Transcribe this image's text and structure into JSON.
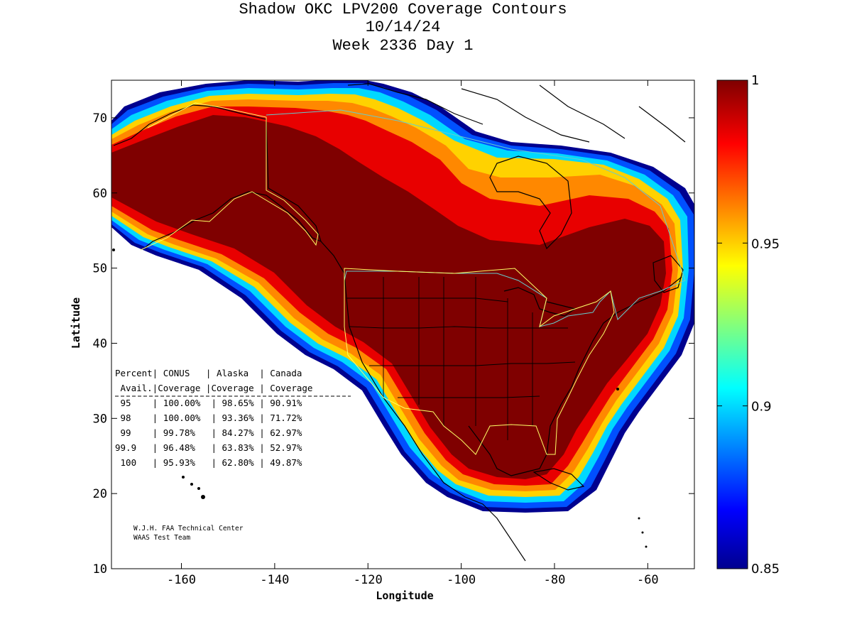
{
  "title": {
    "line1": "Shadow OKC LPV200 Coverage Contours",
    "line2": "10/14/24",
    "line3": "Week 2336 Day 1"
  },
  "axes": {
    "xlabel": "Longitude",
    "ylabel": "Latitude",
    "xlim": [
      -175,
      -50
    ],
    "ylim": [
      10,
      75
    ],
    "xticks": [
      -160,
      -140,
      -120,
      -100,
      -80,
      -60
    ],
    "yticks": [
      10,
      20,
      30,
      40,
      50,
      60,
      70
    ],
    "xtick_labels": [
      "-160",
      "-140",
      "-120",
      "-100",
      "-80",
      "-60"
    ],
    "ytick_labels": [
      "10",
      "20",
      "30",
      "40",
      "50",
      "60",
      "70"
    ]
  },
  "colorbar": {
    "range": [
      0.85,
      1.0
    ],
    "ticks": [
      0.85,
      0.9,
      0.95,
      1.0
    ],
    "tick_labels": [
      "0.85",
      "0.9",
      "0.95",
      "1"
    ],
    "colormap": "jet"
  },
  "coverage_table": {
    "header1": "Percent| CONUS   | Alaska  | Canada",
    "header2": " Avail.|Coverage |Coverage | Coverage",
    "separator": "------------------------------------------",
    "rows": [
      " 95    | 100.00%  | 98.65% | 90.91%",
      " 98    | 100.00%  | 93.36% | 71.72%",
      " 99    | 99.78%   | 84.27% | 62.97%",
      "99.9   | 96.48%   | 63.83% | 52.97%",
      " 100   | 95.93%   | 62.80% | 49.87%"
    ],
    "data": [
      {
        "percent_avail": 95,
        "conus": "100.00%",
        "alaska": "98.65%",
        "canada": "90.91%"
      },
      {
        "percent_avail": 98,
        "conus": "100.00%",
        "alaska": "93.36%",
        "canada": "71.72%"
      },
      {
        "percent_avail": 99,
        "conus": "99.78%",
        "alaska": "84.27%",
        "canada": "62.97%"
      },
      {
        "percent_avail": 99.9,
        "conus": "96.48%",
        "alaska": "63.83%",
        "canada": "52.97%"
      },
      {
        "percent_avail": 100,
        "conus": "95.93%",
        "alaska": "62.80%",
        "canada": "49.87%"
      }
    ]
  },
  "credit": {
    "line1": "W.J.H. FAA Technical Center",
    "line2": "WAAS Test Team"
  },
  "colors": {
    "dark_red": "#7f0000",
    "red": "#e00000",
    "orange": "#ff8c00",
    "yellow": "#ffd700",
    "cyan": "#00d0ff",
    "blue": "#0040ff",
    "navy": "#00008f",
    "boundary_yellow": "#ffff66",
    "boundary_cyan": "#66cccc"
  }
}
